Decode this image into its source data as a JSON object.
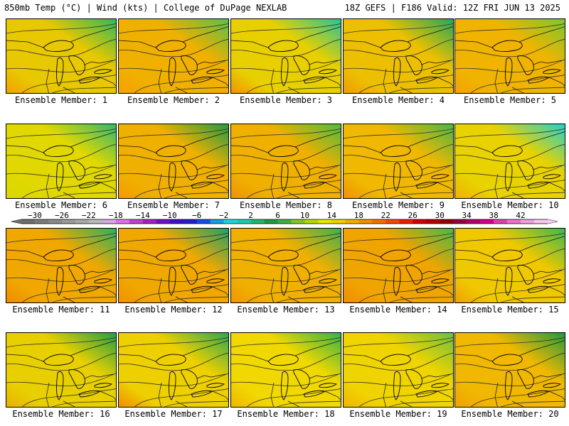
{
  "header": {
    "left": "850mb Temp (°C) | Wind (kts) | College of DuPage NEXLAB",
    "right": "18Z GEFS | F186 Valid: 12Z FRI JUN 13 2025"
  },
  "members": [
    {
      "label": "Ensemble Member: 1",
      "base": "#e8c800",
      "ne": "#2db85a",
      "sw": "#f0a000"
    },
    {
      "label": "Ensemble Member: 2",
      "base": "#f0b000",
      "ne": "#56c04a",
      "sw": "#f5a000"
    },
    {
      "label": "Ensemble Member: 3",
      "base": "#e8d000",
      "ne": "#22c49a",
      "sw": "#f09000"
    },
    {
      "label": "Ensemble Member: 4",
      "base": "#ecc000",
      "ne": "#1fa85a",
      "sw": "#f09a00"
    },
    {
      "label": "Ensemble Member: 5",
      "base": "#f0b400",
      "ne": "#7ac830",
      "sw": "#f4a200"
    },
    {
      "label": "Ensemble Member: 6",
      "base": "#e0d800",
      "ne": "#30b870",
      "sw": "#d8d800"
    },
    {
      "label": "Ensemble Member: 7",
      "base": "#f0b000",
      "ne": "#1e9a45",
      "sw": "#f59800"
    },
    {
      "label": "Ensemble Member: 8",
      "base": "#f0b000",
      "ne": "#4cbc40",
      "sw": "#f09000"
    },
    {
      "label": "Ensemble Member: 9",
      "base": "#f0b800",
      "ne": "#49b648",
      "sw": "#f09000"
    },
    {
      "label": "Ensemble Member: 10",
      "base": "#e8d200",
      "ne": "#20d0d0",
      "sw": "#eeb000"
    },
    {
      "label": "Ensemble Member: 11",
      "base": "#f0a800",
      "ne": "#2bb060",
      "sw": "#f08a00"
    },
    {
      "label": "Ensemble Member: 12",
      "base": "#f0a800",
      "ne": "#1ea06a",
      "sw": "#f09000"
    },
    {
      "label": "Ensemble Member: 13",
      "base": "#f0b000",
      "ne": "#3cb050",
      "sw": "#f09600"
    },
    {
      "label": "Ensemble Member: 14",
      "base": "#f0a400",
      "ne": "#4ab848",
      "sw": "#f08c00"
    },
    {
      "label": "Ensemble Member: 15",
      "base": "#f0c800",
      "ne": "#3ab850",
      "sw": "#f0a000"
    },
    {
      "label": "Ensemble Member: 16",
      "base": "#e8d000",
      "ne": "#1e9e46",
      "sw": "#e8b000"
    },
    {
      "label": "Ensemble Member: 17",
      "base": "#eed000",
      "ne": "#2aa850",
      "sw": "#f08800"
    },
    {
      "label": "Ensemble Member: 18",
      "base": "#f0d800",
      "ne": "#30b448",
      "sw": "#f0b400"
    },
    {
      "label": "Ensemble Member: 19",
      "base": "#f0d400",
      "ne": "#6cc040",
      "sw": "#f0b400"
    },
    {
      "label": "Ensemble Member: 20",
      "base": "#f0b800",
      "ne": "#1e9a40",
      "sw": "#f0a000"
    }
  ],
  "colorbar": {
    "ticks": [
      "−30",
      "−26",
      "−22",
      "−18",
      "−14",
      "−10",
      "−6",
      "−2",
      "2",
      "6",
      "10",
      "14",
      "18",
      "22",
      "26",
      "30",
      "34",
      "38",
      "42"
    ],
    "colors": [
      "#6e6e6e",
      "#7c7c7c",
      "#8a8a8a",
      "#9a9a9a",
      "#aaaaaa",
      "#bcbcbc",
      "#d8a8e8",
      "#e070e8",
      "#c040d0",
      "#a020c0",
      "#7010c0",
      "#4010c0",
      "#2020c8",
      "#1050e0",
      "#10a0e8",
      "#20d0e8",
      "#20c8b0",
      "#20b868",
      "#209a3a",
      "#40b040",
      "#80c820",
      "#b8d800",
      "#e8e800",
      "#f0d000",
      "#f0b000",
      "#f09000",
      "#f07000",
      "#f04a00",
      "#e82000",
      "#d00000",
      "#b00000",
      "#900000",
      "#900040",
      "#b00070",
      "#d00090",
      "#e040b0",
      "#f070d0",
      "#f0a0e0",
      "#f8c8f0"
    ]
  }
}
